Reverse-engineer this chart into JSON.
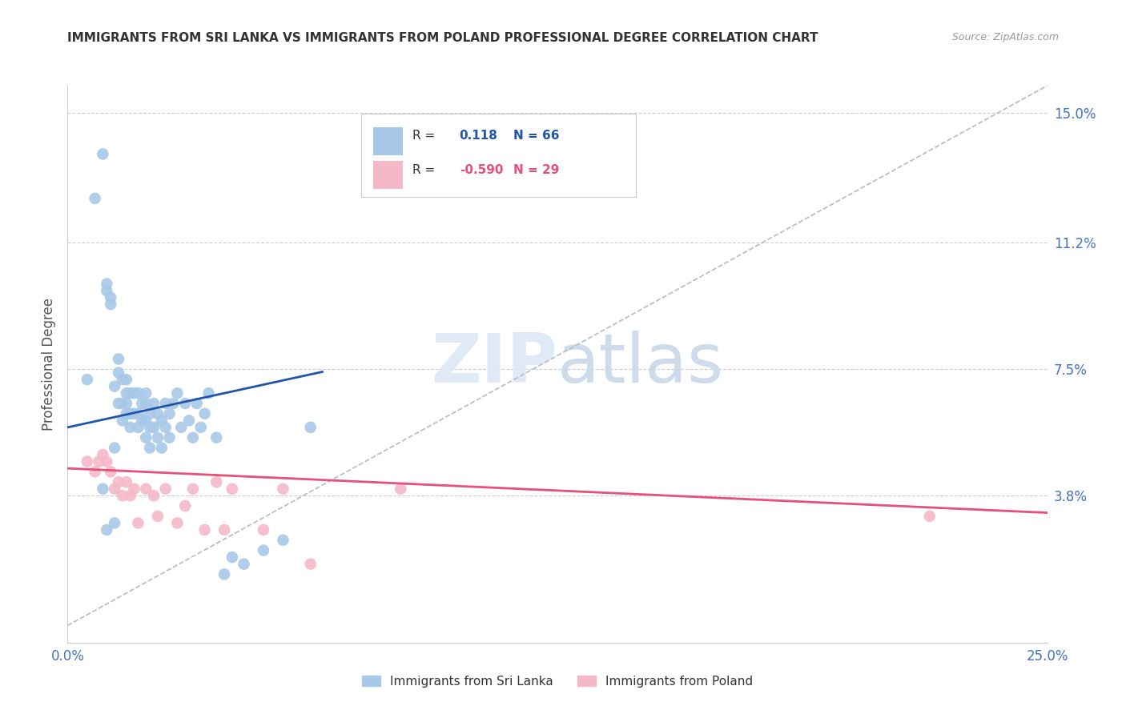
{
  "title": "IMMIGRANTS FROM SRI LANKA VS IMMIGRANTS FROM POLAND PROFESSIONAL DEGREE CORRELATION CHART",
  "source": "Source: ZipAtlas.com",
  "ylabel_ticks": [
    "15.0%",
    "11.2%",
    "7.5%",
    "3.8%"
  ],
  "ylabel_tick_vals": [
    0.15,
    0.112,
    0.075,
    0.038
  ],
  "xlabel_ticks": [
    "0.0%",
    "25.0%"
  ],
  "xlabel_tick_vals": [
    0.0,
    0.25
  ],
  "xmin": 0.0,
  "xmax": 0.25,
  "ymin": -0.005,
  "ymax": 0.158,
  "sri_lanka_R": 0.118,
  "sri_lanka_N": 66,
  "poland_R": -0.59,
  "poland_N": 29,
  "sri_lanka_color": "#a8c8e8",
  "sri_lanka_line_color": "#2255aa",
  "poland_color": "#f5b8c8",
  "poland_line_color": "#e8507a",
  "trend_line_color": "#b8b8cc",
  "background_color": "#ffffff",
  "grid_color": "#ccccdd",
  "label_color": "#4472c4",
  "title_color": "#333333",
  "watermark": "ZIPatlas",
  "sri_lanka_x": [
    0.005,
    0.007,
    0.009,
    0.009,
    0.01,
    0.01,
    0.01,
    0.011,
    0.011,
    0.012,
    0.012,
    0.012,
    0.013,
    0.013,
    0.013,
    0.014,
    0.014,
    0.014,
    0.015,
    0.015,
    0.015,
    0.015,
    0.016,
    0.016,
    0.016,
    0.017,
    0.017,
    0.018,
    0.018,
    0.018,
    0.019,
    0.019,
    0.02,
    0.02,
    0.02,
    0.02,
    0.021,
    0.021,
    0.021,
    0.022,
    0.022,
    0.023,
    0.023,
    0.024,
    0.024,
    0.025,
    0.025,
    0.026,
    0.026,
    0.027,
    0.028,
    0.029,
    0.03,
    0.031,
    0.032,
    0.033,
    0.034,
    0.035,
    0.036,
    0.038,
    0.04,
    0.042,
    0.045,
    0.05,
    0.055,
    0.062
  ],
  "sri_lanka_y": [
    0.072,
    0.125,
    0.138,
    0.04,
    0.1,
    0.098,
    0.028,
    0.094,
    0.096,
    0.052,
    0.07,
    0.03,
    0.074,
    0.078,
    0.065,
    0.072,
    0.065,
    0.06,
    0.072,
    0.068,
    0.065,
    0.062,
    0.068,
    0.062,
    0.058,
    0.068,
    0.062,
    0.068,
    0.062,
    0.058,
    0.065,
    0.06,
    0.068,
    0.065,
    0.06,
    0.055,
    0.062,
    0.058,
    0.052,
    0.065,
    0.058,
    0.062,
    0.055,
    0.06,
    0.052,
    0.065,
    0.058,
    0.062,
    0.055,
    0.065,
    0.068,
    0.058,
    0.065,
    0.06,
    0.055,
    0.065,
    0.058,
    0.062,
    0.068,
    0.055,
    0.015,
    0.02,
    0.018,
    0.022,
    0.025,
    0.058
  ],
  "poland_x": [
    0.005,
    0.007,
    0.008,
    0.009,
    0.01,
    0.011,
    0.012,
    0.013,
    0.014,
    0.015,
    0.016,
    0.017,
    0.018,
    0.02,
    0.022,
    0.023,
    0.025,
    0.028,
    0.03,
    0.032,
    0.035,
    0.038,
    0.04,
    0.042,
    0.05,
    0.055,
    0.062,
    0.085,
    0.22
  ],
  "poland_y": [
    0.048,
    0.045,
    0.048,
    0.05,
    0.048,
    0.045,
    0.04,
    0.042,
    0.038,
    0.042,
    0.038,
    0.04,
    0.03,
    0.04,
    0.038,
    0.032,
    0.04,
    0.03,
    0.035,
    0.04,
    0.028,
    0.042,
    0.028,
    0.04,
    0.028,
    0.04,
    0.018,
    0.04,
    0.032
  ],
  "sri_lanka_line_x": [
    0.0,
    0.065
  ],
  "sri_lanka_line_y_intercept": 0.058,
  "sri_lanka_line_slope": 0.25,
  "poland_line_x": [
    0.0,
    0.25
  ],
  "poland_line_y_intercept": 0.046,
  "poland_line_slope": -0.052
}
